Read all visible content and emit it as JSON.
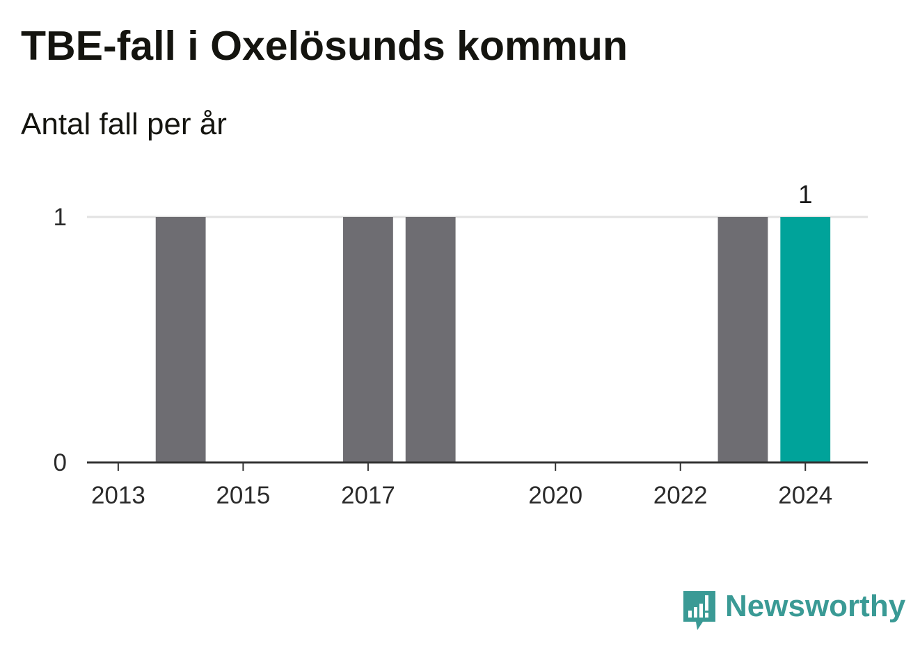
{
  "chart_data": {
    "type": "bar",
    "title": "TBE-fall i Oxelösunds kommun",
    "subtitle": "Antal fall per år",
    "categories": [
      "2013",
      "2014",
      "2015",
      "2016",
      "2017",
      "2018",
      "2019",
      "2020",
      "2021",
      "2022",
      "2023",
      "2024"
    ],
    "values": [
      0,
      1,
      0,
      0,
      1,
      1,
      0,
      0,
      0,
      0,
      1,
      1
    ],
    "x_tick_labels": [
      "2013",
      "2015",
      "2017",
      "2020",
      "2022",
      "2024"
    ],
    "y_ticks": [
      0,
      1
    ],
    "ylim": [
      0,
      1
    ],
    "highlight_category": "2024",
    "highlight_label": "1",
    "grid": true,
    "colors": {
      "bar": "#6e6d72",
      "highlight": "#00a39a",
      "grid": "#e2e2e2",
      "axis": "#333333"
    }
  },
  "branding": {
    "name": "Newsworthy",
    "icon": "newsworthy-logo-icon",
    "color": "#3a9a95"
  }
}
